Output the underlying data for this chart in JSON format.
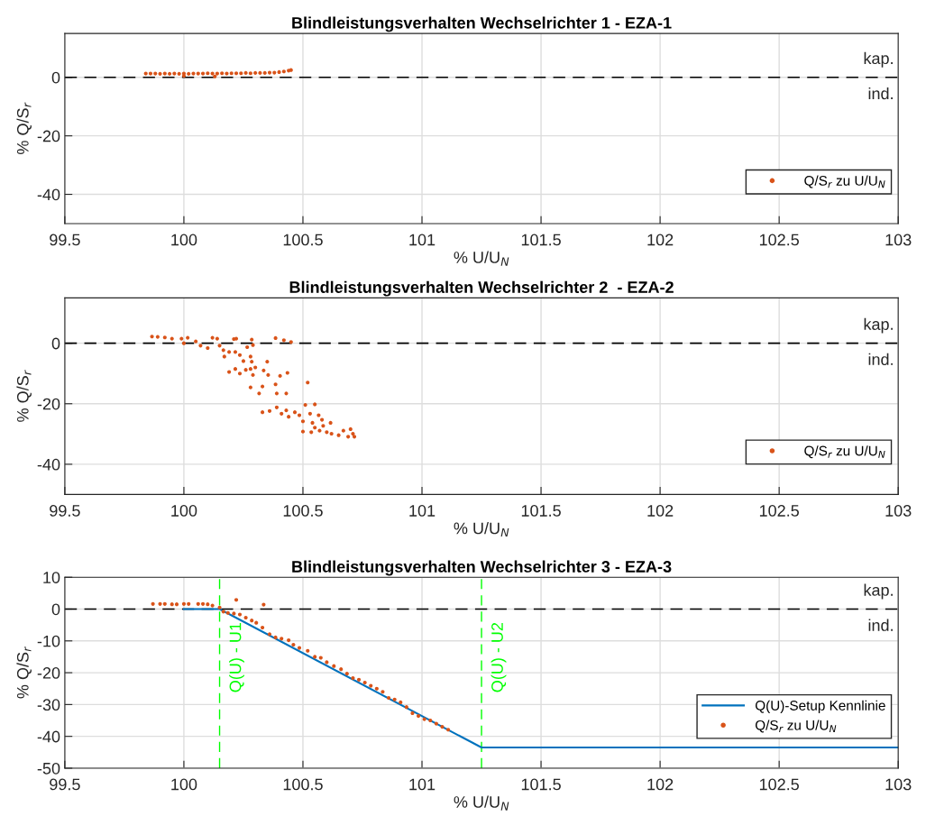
{
  "chart_data": [
    {
      "type": "scatter",
      "title": "Blindleistungsverhalten Wechselrichter 1 - EZA-1",
      "xlabel": "% U/U$_{N}$",
      "ylabel": "% Q/S$_{r}$",
      "xlim": [
        99.5,
        103
      ],
      "xticks": [
        99.5,
        100,
        100.5,
        101,
        101.5,
        102,
        102.5,
        103
      ],
      "ylim": [
        -50,
        15
      ],
      "yticks": [
        -40,
        -20,
        0
      ],
      "grid": true,
      "legend": "bottom right",
      "marker": "circle",
      "ref_lines": [
        {
          "axis": "y",
          "value": 0,
          "color": "#000000",
          "line_style": "dashed"
        }
      ],
      "annotations": [
        "kap.",
        "ind."
      ],
      "series": [
        {
          "name": "Q/S$_{r}$ zu U/U$_{N}$",
          "color": "#d95319",
          "x": [
            99.84,
            99.86,
            99.88,
            99.9,
            99.92,
            99.94,
            99.96,
            99.98,
            100.0,
            100.02,
            100.04,
            100.06,
            100.08,
            100.1,
            100.12,
            100.14,
            100.16,
            100.18,
            100.2,
            100.22,
            100.24,
            100.26,
            100.28,
            100.3,
            100.32,
            100.34,
            100.36,
            100.38,
            100.4,
            100.42,
            100.44,
            100.45,
            100.0,
            100.13
          ],
          "values": [
            1.3,
            1.3,
            1.3,
            1.2,
            1.3,
            1.2,
            1.3,
            1.2,
            1.3,
            1.2,
            1.3,
            1.3,
            1.3,
            1.4,
            1.3,
            1.3,
            1.4,
            1.3,
            1.4,
            1.4,
            1.4,
            1.5,
            1.4,
            1.5,
            1.5,
            1.5,
            1.6,
            1.6,
            1.8,
            2.0,
            2.3,
            2.5,
            0.5,
            0.3
          ]
        }
      ]
    },
    {
      "type": "scatter",
      "title": "Blindleistungsverhalten Wechselrichter 2  - EZA-2",
      "xlabel": "% U/U$_{N}$",
      "ylabel": "% Q/S$_{r}$",
      "xlim": [
        99.5,
        103
      ],
      "xticks": [
        99.5,
        100,
        100.5,
        101,
        101.5,
        102,
        102.5,
        103
      ],
      "ylim": [
        -50,
        15
      ],
      "yticks": [
        -40,
        -20,
        0
      ],
      "grid": true,
      "legend": "bottom right",
      "marker": "circle",
      "ref_lines": [
        {
          "axis": "y",
          "value": 0,
          "color": "#000000",
          "line_style": "dashed"
        }
      ],
      "annotations": [
        "kap.",
        "ind."
      ],
      "series": [
        {
          "name": "Q/S$_{r}$ zu U/U$_{N}$",
          "color": "#d95319",
          "x": [
            99.866,
            99.89,
            99.92,
            99.95,
            99.99,
            100.016,
            100.0,
            100.05,
            100.07,
            100.1,
            100.12,
            100.14,
            100.15,
            100.166,
            100.17,
            100.19,
            100.21,
            100.22,
            100.216,
            100.235,
            100.25,
            100.266,
            100.28,
            100.285,
            100.285,
            100.29,
            100.19,
            100.216,
            100.235,
            100.26,
            100.28,
            100.3,
            100.28,
            100.29,
            100.316,
            100.33,
            100.335,
            100.35,
            100.354,
            100.385,
            100.385,
            100.39,
            100.404,
            100.42,
            100.43,
            100.435,
            100.45,
            100.33,
            100.36,
            100.39,
            100.41,
            100.43,
            100.44,
            100.466,
            100.485,
            100.5,
            100.51,
            100.52,
            100.53,
            100.54,
            100.55,
            100.566,
            100.58,
            100.5,
            100.535,
            100.55,
            100.57,
            100.585,
            100.6,
            100.616,
            100.62,
            100.65,
            100.67,
            100.69,
            100.71,
            100.716,
            100.7
          ],
          "values": [
            2.2,
            2.1,
            1.9,
            1.5,
            1.5,
            1.8,
            0,
            0.6,
            -0.8,
            -1.6,
            1.8,
            1.5,
            -0.8,
            -2.3,
            -4.4,
            -2.9,
            1.4,
            1.5,
            -2.9,
            -3.9,
            -5.9,
            -1.3,
            -4.4,
            1.2,
            -6.1,
            -0.6,
            -9.5,
            -8.5,
            -10,
            -8.8,
            -8.5,
            -8,
            -14.6,
            -10.5,
            -16.6,
            -14.3,
            -9,
            -6.1,
            -10.5,
            1.7,
            -13.6,
            -16.6,
            -10.8,
            1.0,
            -16.6,
            -9.8,
            0.4,
            -22.8,
            -22.4,
            -21.2,
            -23.3,
            -22.2,
            -24.3,
            -22.8,
            -23.8,
            -25.8,
            -20.4,
            -13,
            -23.3,
            -26.3,
            -20.2,
            -23.8,
            -25.3,
            -29.2,
            -29.4,
            -27.9,
            -28.9,
            -27.3,
            -29.4,
            -26.3,
            -29.9,
            -30.4,
            -28.9,
            -30.9,
            -29.9,
            -30.9,
            -28.4
          ]
        }
      ]
    },
    {
      "type": "scatter",
      "title": "Blindleistungsverhalten Wechselrichter 3 - EZA-3",
      "xlabel": "% U/U$_{N}$",
      "ylabel": "% Q/S$_{r}$",
      "xlim": [
        99.5,
        103
      ],
      "xticks": [
        99.5,
        100,
        100.5,
        101,
        101.5,
        102,
        102.5,
        103
      ],
      "ylim": [
        -50,
        10
      ],
      "yticks": [
        -50,
        -40,
        -30,
        -20,
        -10,
        0,
        10
      ],
      "grid": true,
      "legend": "bottom right",
      "marker": "circle",
      "ref_lines": [
        {
          "axis": "y",
          "value": 0,
          "color": "#000000",
          "line_style": "dashed"
        },
        {
          "axis": "x",
          "value": 100.15,
          "label": "Q(U) - U1",
          "color": "#00ff00",
          "line_style": "dashed"
        },
        {
          "axis": "x",
          "value": 101.25,
          "label": "Q(U) - U2",
          "color": "#00ff00",
          "line_style": "dashed"
        }
      ],
      "annotations": [
        "kap.",
        "ind."
      ],
      "series": [
        {
          "name": "Q(U)-Setup Kennlinie",
          "color": "#0072bd",
          "type": "line",
          "marker": "none",
          "x": [
            100.0,
            100.15,
            101.25,
            103
          ],
          "values": [
            0,
            0,
            -43.5,
            -43.5
          ]
        },
        {
          "name": "Q/S$_{r}$ zu U/U$_{N}$",
          "color": "#d95319",
          "x": [
            99.87,
            99.9,
            99.92,
            99.95,
            99.97,
            100.0,
            100.02,
            100.06,
            100.08,
            100.1,
            100.12,
            100.15,
            100.166,
            100.185,
            100.22,
            100.21,
            100.235,
            100.26,
            100.285,
            100.304,
            100.335,
            100.33,
            100.36,
            100.385,
            100.41,
            100.44,
            100.46,
            100.485,
            100.52,
            100.55,
            100.575,
            100.6,
            100.63,
            100.66,
            100.685,
            100.71,
            100.735,
            100.76,
            100.785,
            100.81,
            100.835,
            100.86,
            100.885,
            100.91,
            100.935,
            100.96,
            100.985,
            101.01,
            101.035,
            101.06,
            101.085,
            101.11
          ],
          "values": [
            1.6,
            1.6,
            1.6,
            1.5,
            1.5,
            1.6,
            1.6,
            1.6,
            1.6,
            1.5,
            1.1,
            0.5,
            -0.8,
            -1.2,
            2.9,
            -1.4,
            -1.7,
            -2.7,
            -3.6,
            -4.3,
            1.4,
            -5.8,
            -7.9,
            -8.9,
            -9.3,
            -9.8,
            -11.2,
            -12.2,
            -13.1,
            -15,
            -15.3,
            -16.7,
            -17.9,
            -18.9,
            -20.3,
            -21.7,
            -22.2,
            -23.1,
            -24.1,
            -25,
            -26,
            -27.9,
            -28.4,
            -29.3,
            -30.8,
            -32.7,
            -33.6,
            -34.6,
            -35,
            -36,
            -37,
            -37.9
          ]
        }
      ]
    }
  ]
}
